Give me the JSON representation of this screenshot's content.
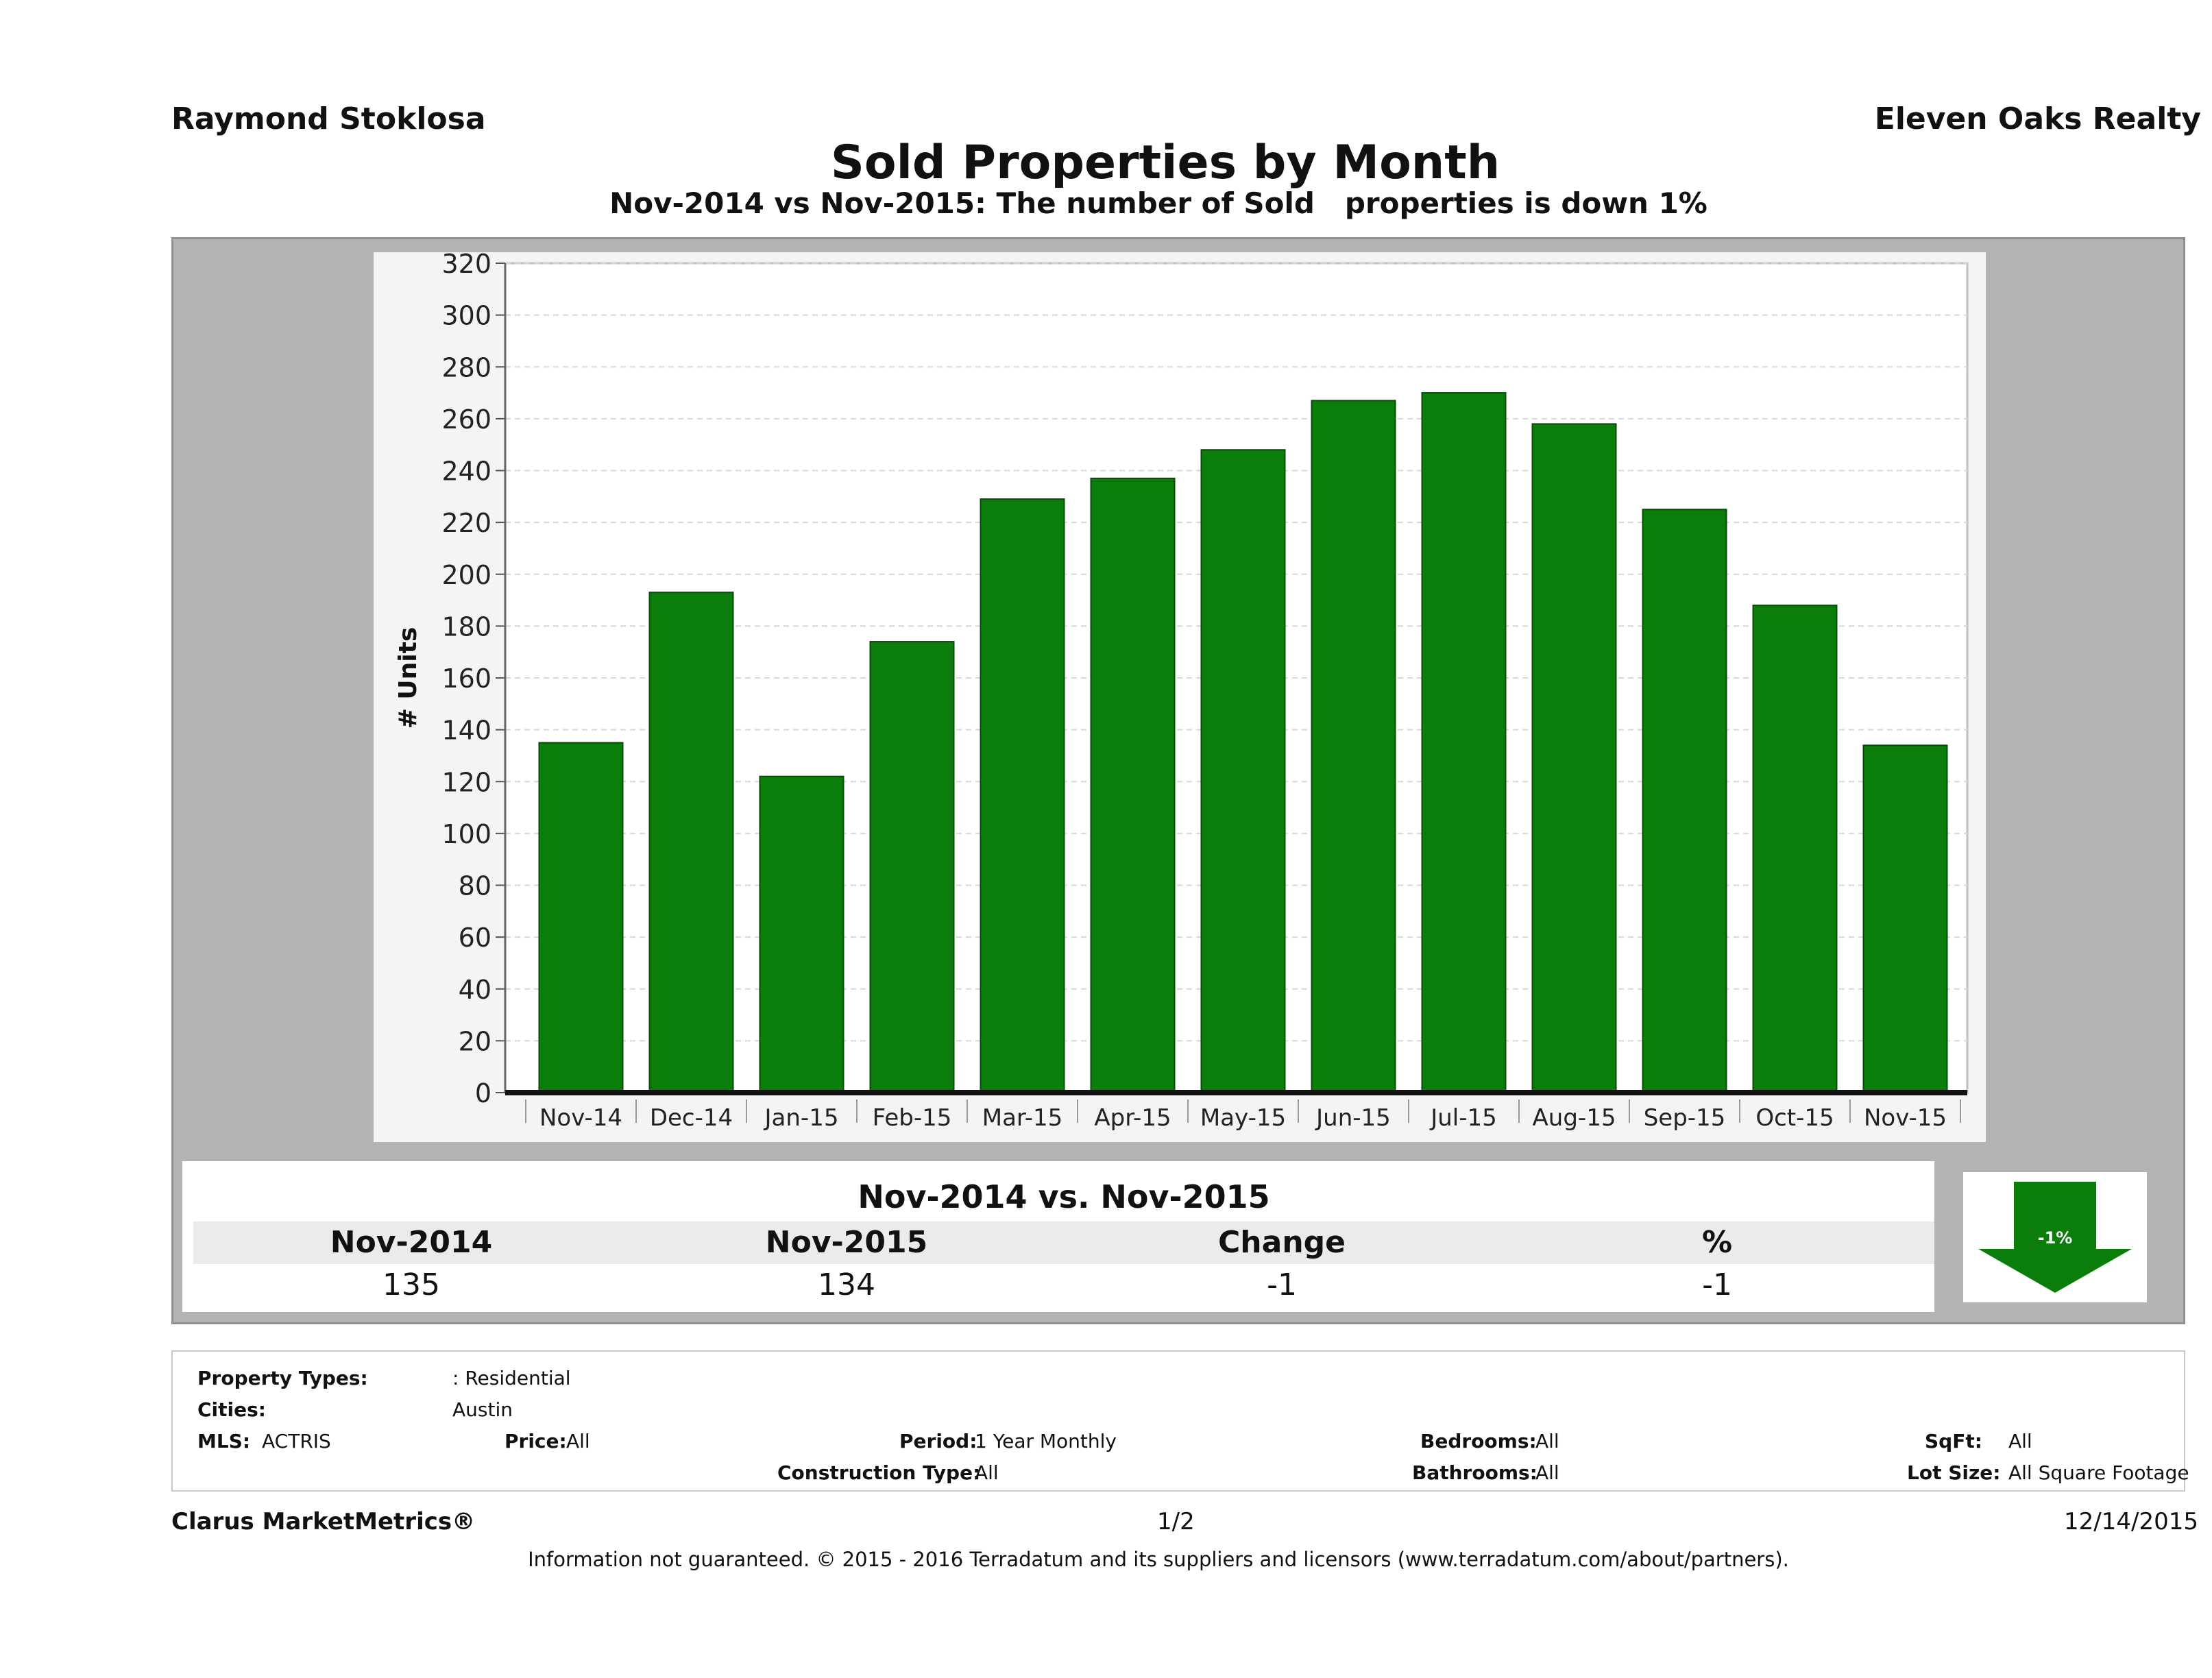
{
  "header": {
    "agent": "Raymond Stoklosa",
    "company": "Eleven Oaks Realty",
    "title": "Sold Properties by Month",
    "subtitle": "Nov-2014 vs Nov-2015: The number of Sold   properties is down 1%"
  },
  "chart_data": {
    "type": "bar",
    "categories": [
      "Nov-14",
      "Dec-14",
      "Jan-15",
      "Feb-15",
      "Mar-15",
      "Apr-15",
      "May-15",
      "Jun-15",
      "Jul-15",
      "Aug-15",
      "Sep-15",
      "Oct-15",
      "Nov-15"
    ],
    "values": [
      135,
      193,
      122,
      174,
      229,
      237,
      248,
      267,
      270,
      258,
      225,
      188,
      134
    ],
    "ylabel": "# Units",
    "ylim": [
      0,
      320
    ],
    "yticks": [
      0,
      20,
      40,
      60,
      80,
      100,
      120,
      140,
      160,
      180,
      200,
      220,
      240,
      260,
      280,
      300,
      320
    ],
    "grid": true,
    "bar_color": "#0a7d0a"
  },
  "summary": {
    "heading": "Nov-2014 vs. Nov-2015",
    "headers": [
      "Nov-2014",
      "Nov-2015",
      "Change",
      "%"
    ],
    "values": [
      "135",
      "134",
      "-1",
      "-1"
    ],
    "arrow_label": "-1%",
    "arrow_color": "#0a7d0a"
  },
  "info": {
    "property_types_label": "Property Types:",
    "property_types_value": ": Residential",
    "cities_label": "Cities:",
    "cities_value": "Austin",
    "mls_label": "MLS:",
    "mls_value": "ACTRIS",
    "price_label": "Price:",
    "price_value": "All",
    "period_label": "Period:",
    "period_value": "1 Year Monthly",
    "construction_label": "Construction Type:",
    "construction_value": "All",
    "bedrooms_label": "Bedrooms:",
    "bedrooms_value": "All",
    "bathrooms_label": "Bathrooms:",
    "bathrooms_value": "All",
    "sqft_label": "SqFt:",
    "sqft_value": "All",
    "lotsize_label": "Lot Size:",
    "lotsize_value": "All Square Footage"
  },
  "footer": {
    "brand": "Clarus MarketMetrics®",
    "page": "1/2",
    "date": "12/14/2015",
    "disclaimer": "Information not guaranteed. © 2015 - 2016 Terradatum and its suppliers and licensors (www.terradatum.com/about/partners)."
  }
}
